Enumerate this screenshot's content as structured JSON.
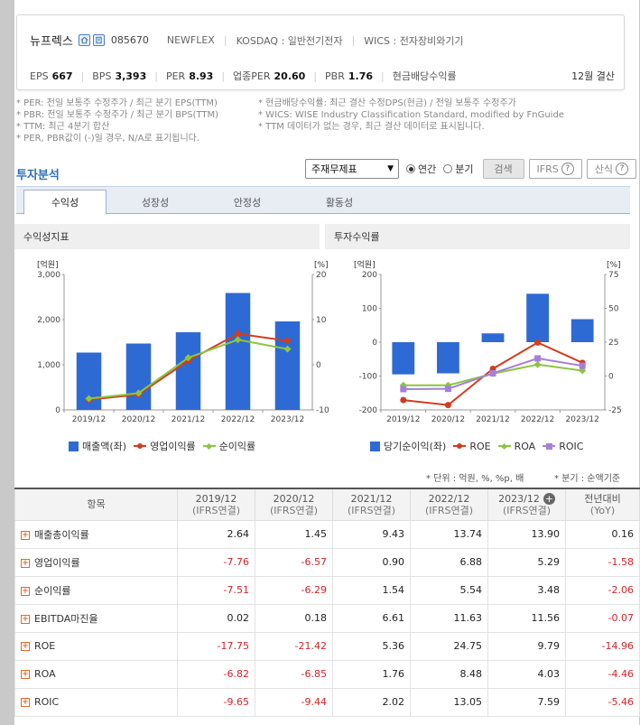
{
  "company": {
    "name": "뉴프렉스",
    "code": "085670",
    "eng_name": "NEWFLEX",
    "market": "KOSDAQ : 일반전기전자",
    "wics": "WICS : 전자장비와기기"
  },
  "metrics": [
    {
      "label": "EPS",
      "value": "667"
    },
    {
      "label": "BPS",
      "value": "3,393"
    },
    {
      "label": "PER",
      "value": "8.93"
    },
    {
      "label": "업종PER",
      "value": "20.60"
    },
    {
      "label": "PBR",
      "value": "1.76"
    },
    {
      "label": "현금배당수익률",
      "value": ""
    }
  ],
  "settlement": "12월 결산",
  "notes_left": [
    "* PER: 전일 보통주 수정주가 / 최근 분기 EPS(TTM)",
    "* PBR: 전일 보통주 수정주가 / 최근 분기 BPS(TTM)",
    "* TTM: 최근 4분기 합산",
    "* PER, PBR값이 (-)일 경우, N/A로 표기됩니다."
  ],
  "notes_right": [
    "* 현금배당수익률: 최근 결산 수정DPS(현금) / 전일 보통주 수정주가",
    "* WICS: WISE Industry Classification Standard, modified by FnGuide",
    "* TTM 데이터가 없는 경우, 최근 결산 데이터로 표시됩니다."
  ],
  "section_title": "투자분석",
  "controls": {
    "select_value": "주재무제표",
    "radio_annual": "연간",
    "radio_quarter": "분기",
    "search": "검색",
    "ifrs": "IFRS",
    "formula": "산식"
  },
  "tabs": [
    "수익성",
    "성장성",
    "안정성",
    "활동성"
  ],
  "colors": {
    "bar": "#2e6ad3",
    "red": "#d13d1e",
    "green": "#8cc63f",
    "purple": "#a77fd9"
  },
  "chart_left": {
    "title": "수익성지표",
    "chart_data": {
      "type": "bar",
      "categories": [
        "2019/12",
        "2020/12",
        "2021/12",
        "2022/12",
        "2023/12"
      ],
      "series": [
        {
          "name": "매출액(좌)",
          "type": "bar",
          "axis": "left",
          "values": [
            1270,
            1470,
            1720,
            2590,
            1960
          ]
        },
        {
          "name": "영업이익률",
          "type": "line",
          "axis": "right",
          "values": [
            -7.76,
            -6.57,
            0.9,
            6.88,
            5.29
          ]
        },
        {
          "name": "순이익률",
          "type": "line",
          "axis": "right",
          "values": [
            -7.51,
            -6.29,
            1.54,
            5.54,
            3.48
          ]
        }
      ],
      "y_left_label": "[억원]",
      "y_right_label": "[%]",
      "y_left_ticks": [
        "3,000",
        "2,000",
        "1,000",
        "0"
      ],
      "y_right_ticks": [
        "20",
        "10",
        "0",
        "-10"
      ],
      "ylim_left": [
        0,
        3000
      ],
      "ylim_right": [
        -10,
        20
      ]
    }
  },
  "chart_right": {
    "title": "투자수익률",
    "chart_data": {
      "type": "bar",
      "categories": [
        "2019/12",
        "2020/12",
        "2021/12",
        "2022/12",
        "2023/12"
      ],
      "series": [
        {
          "name": "당기순이익(좌)",
          "type": "bar",
          "axis": "left",
          "values": [
            -95,
            -92,
            26,
            143,
            68
          ]
        },
        {
          "name": "ROE",
          "type": "line",
          "axis": "right",
          "values": [
            -17.75,
            -21.42,
            5.36,
            24.75,
            9.79
          ]
        },
        {
          "name": "ROA",
          "type": "line",
          "axis": "right",
          "values": [
            -6.82,
            -6.85,
            1.76,
            8.48,
            4.03
          ]
        },
        {
          "name": "ROIC",
          "type": "line",
          "axis": "right",
          "values": [
            -9.65,
            -9.44,
            2.02,
            13.05,
            7.59
          ]
        }
      ],
      "y_left_label": "[억원]",
      "y_right_label": "[%]",
      "y_left_ticks": [
        "200",
        "100",
        "0",
        "-100",
        "-200"
      ],
      "y_right_ticks": [
        "75",
        "50",
        "25",
        "0",
        "-25"
      ],
      "ylim_left": [
        -200,
        200
      ],
      "ylim_right": [
        -25,
        75
      ]
    }
  },
  "unit_left": "* 단위 : 억원, %, %p, 배",
  "unit_right": "* 분기 : 순액기준",
  "table": {
    "header": {
      "item": "항목",
      "cols": [
        {
          "year": "2019/12",
          "sub": "(IFRS연결)"
        },
        {
          "year": "2020/12",
          "sub": "(IFRS연결)"
        },
        {
          "year": "2021/12",
          "sub": "(IFRS연결)"
        },
        {
          "year": "2022/12",
          "sub": "(IFRS연결)"
        },
        {
          "year": "2023/12",
          "sub": "(IFRS연결)"
        }
      ],
      "yoy": "전년대비",
      "yoy_sub": "(YoY)"
    },
    "rows": [
      {
        "name": "매출총이익률",
        "values": [
          "2.64",
          "1.45",
          "9.43",
          "13.74",
          "13.90"
        ],
        "yoy": "0.16"
      },
      {
        "name": "영업이익률",
        "values": [
          "-7.76",
          "-6.57",
          "0.90",
          "6.88",
          "5.29"
        ],
        "yoy": "-1.58"
      },
      {
        "name": "순이익률",
        "values": [
          "-7.51",
          "-6.29",
          "1.54",
          "5.54",
          "3.48"
        ],
        "yoy": "-2.06"
      },
      {
        "name": "EBITDA마진율",
        "values": [
          "0.02",
          "0.18",
          "6.61",
          "11.63",
          "11.56"
        ],
        "yoy": "-0.07"
      },
      {
        "name": "ROE",
        "values": [
          "-17.75",
          "-21.42",
          "5.36",
          "24.75",
          "9.79"
        ],
        "yoy": "-14.96"
      },
      {
        "name": "ROA",
        "values": [
          "-6.82",
          "-6.85",
          "1.76",
          "8.48",
          "4.03"
        ],
        "yoy": "-4.46"
      },
      {
        "name": "ROIC",
        "values": [
          "-9.65",
          "-9.44",
          "2.02",
          "13.05",
          "7.59"
        ],
        "yoy": "-5.46"
      }
    ]
  }
}
